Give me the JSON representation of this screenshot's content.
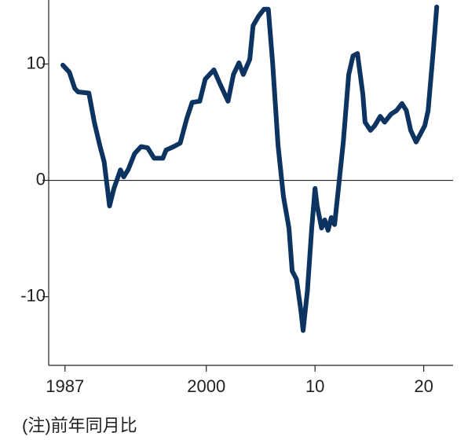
{
  "chart_data": {
    "type": "line",
    "note": "(注)前年同月比",
    "x": [
      1986.8,
      1987.4,
      1987.9,
      1988.2,
      1989.2,
      1989.7,
      1990.2,
      1990.6,
      1990.9,
      1991.1,
      1991.5,
      1992.1,
      1992.4,
      1992.8,
      1993.4,
      1994.0,
      1994.6,
      1995.2,
      1996.0,
      1996.3,
      1997.0,
      1997.6,
      1998.2,
      1998.7,
      1999.4,
      1999.9,
      2000.7,
      2001.2,
      2002.0,
      2002.5,
      2003.0,
      2003.4,
      2004.0,
      2004.3,
      2004.8,
      2005.3,
      2005.7,
      2006.1,
      2006.6,
      2007.1,
      2007.6,
      2007.9,
      2008.3,
      2008.7,
      2008.9,
      2009.3,
      2009.7,
      2010.0,
      2010.2,
      2010.6,
      2010.9,
      2011.2,
      2011.5,
      2011.8,
      2012.3,
      2012.6,
      2013.1,
      2013.5,
      2013.9,
      2014.4,
      2014.6,
      2015.1,
      2015.5,
      2016.0,
      2016.4,
      2017.0,
      2017.5,
      2018.0,
      2018.4,
      2018.8,
      2019.3,
      2019.7,
      2020.1,
      2020.4,
      2020.9,
      2021.2
    ],
    "series": [
      {
        "color": "#0d3461",
        "values": [
          9.9,
          9.3,
          7.9,
          7.6,
          7.5,
          5.0,
          3.0,
          1.6,
          -0.7,
          -2.2,
          -0.7,
          0.9,
          0.3,
          0.9,
          2.3,
          2.9,
          2.8,
          1.9,
          1.9,
          2.6,
          2.9,
          3.2,
          5.3,
          6.7,
          6.8,
          8.7,
          9.5,
          8.4,
          6.8,
          9.1,
          10.1,
          9.1,
          10.4,
          13.3,
          14.1,
          14.7,
          14.7,
          10.1,
          3.0,
          -1.4,
          -4.1,
          -7.8,
          -8.5,
          -11.2,
          -12.9,
          -9.5,
          -4.1,
          -0.7,
          -2.2,
          -4.1,
          -3.4,
          -4.3,
          -3.2,
          -3.8,
          0.6,
          3.3,
          9.1,
          10.7,
          10.9,
          7.4,
          5.0,
          4.3,
          4.7,
          5.5,
          5.0,
          5.7,
          6.0,
          6.6,
          6.0,
          4.3,
          3.3,
          4.0,
          4.7,
          6.0,
          11.4,
          14.9
        ]
      }
    ],
    "xlim": [
      1985.5,
      2022.7
    ],
    "ylim": [
      -15.9,
      15.5
    ],
    "xticks": [
      1987,
      2000,
      {
        "value": 2010,
        "label": "10"
      },
      {
        "value": 2020,
        "label": "20"
      }
    ],
    "yticks": [
      10,
      0,
      -10
    ]
  }
}
